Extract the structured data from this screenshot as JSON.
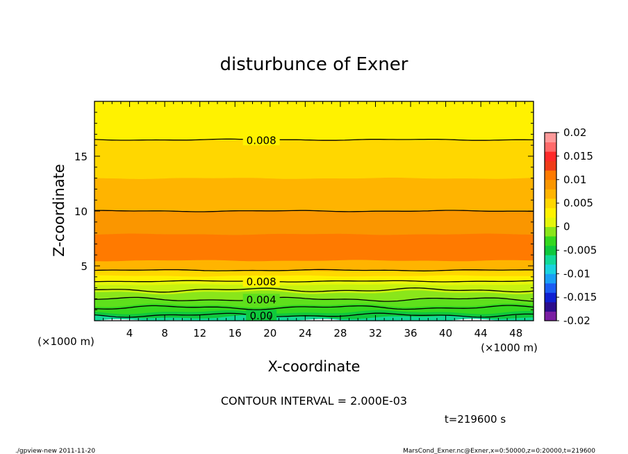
{
  "chart_data": {
    "type": "heatmap",
    "title": "disturbunce of Exner",
    "xlabel": "X-coordinate",
    "ylabel": "Z-coordinate",
    "x_unit": "(×1000 m)",
    "y_unit": "(×1000 m)",
    "xlim": [
      0,
      50
    ],
    "ylim": [
      0,
      20
    ],
    "x_ticks": [
      4,
      8,
      12,
      16,
      20,
      24,
      28,
      32,
      36,
      40,
      44,
      48
    ],
    "y_ticks": [
      5,
      10,
      15
    ],
    "colorbar": {
      "min": -0.02,
      "max": 0.02,
      "tick_labels": [
        "0.02",
        "0.015",
        "0.01",
        "0.005",
        "0",
        "-0.005",
        "-0.01",
        "-0.015",
        "-0.02"
      ],
      "tick_values": [
        0.02,
        0.015,
        0.01,
        0.005,
        0,
        -0.005,
        -0.01,
        -0.015,
        -0.02
      ],
      "colors": [
        "#7a1fa2",
        "#2b0d8c",
        "#0f1fd1",
        "#1b5cf2",
        "#1aa0f5",
        "#1ad3df",
        "#12d997",
        "#0fc83c",
        "#34d81f",
        "#8ae61a",
        "#e5f60b",
        "#fff200",
        "#ffd700",
        "#ffb400",
        "#fa9600",
        "#ff7a00",
        "#f03c19",
        "#ff2a2a",
        "#ff6a6a",
        "#ff9a9a"
      ]
    },
    "bands": [
      {
        "z": [
          0.0,
          0.35
        ],
        "color": "#12d997"
      },
      {
        "z": [
          0.35,
          0.8
        ],
        "color": "#0fc83c"
      },
      {
        "z": [
          0.8,
          1.4
        ],
        "color": "#34d81f"
      },
      {
        "z": [
          1.4,
          2.0
        ],
        "color": "#5ee01c"
      },
      {
        "z": [
          2.0,
          2.6
        ],
        "color": "#8ae61a"
      },
      {
        "z": [
          2.6,
          3.3
        ],
        "color": "#c8f20f"
      },
      {
        "z": [
          3.3,
          3.6
        ],
        "color": "#e5f60b"
      },
      {
        "z": [
          3.6,
          4.1
        ],
        "color": "#fff200"
      },
      {
        "z": [
          4.1,
          4.6
        ],
        "color": "#ffd700"
      },
      {
        "z": [
          4.6,
          5.5
        ],
        "color": "#ffb400"
      },
      {
        "z": [
          5.5,
          7.9
        ],
        "color": "#ff7a00"
      },
      {
        "z": [
          7.9,
          10.0
        ],
        "color": "#fa9600"
      },
      {
        "z": [
          10.0,
          13.0
        ],
        "color": "#ffb400"
      },
      {
        "z": [
          13.0,
          16.5
        ],
        "color": "#ffd700"
      },
      {
        "z": [
          16.5,
          20.0
        ],
        "color": "#fff200"
      }
    ],
    "contours": [
      {
        "z": 0.5,
        "label": "0.00"
      },
      {
        "z": 1.2,
        "label": ""
      },
      {
        "z": 1.95,
        "label": "0.004"
      },
      {
        "z": 2.8,
        "label": ""
      },
      {
        "z": 3.6,
        "label": "0.008"
      },
      {
        "z": 4.6,
        "label": ""
      },
      {
        "z": 10.0,
        "label": ""
      },
      {
        "z": 16.5,
        "label": "0.008"
      }
    ],
    "contour_interval_text": "CONTOUR INTERVAL = 2.000E-03",
    "time_text": "t=219600 s"
  },
  "footer": {
    "left": "./gpview-new   2011-11-20",
    "right": "MarsCond_Exner.nc@Exner,x=0:50000,z=0:20000,t=219600"
  }
}
